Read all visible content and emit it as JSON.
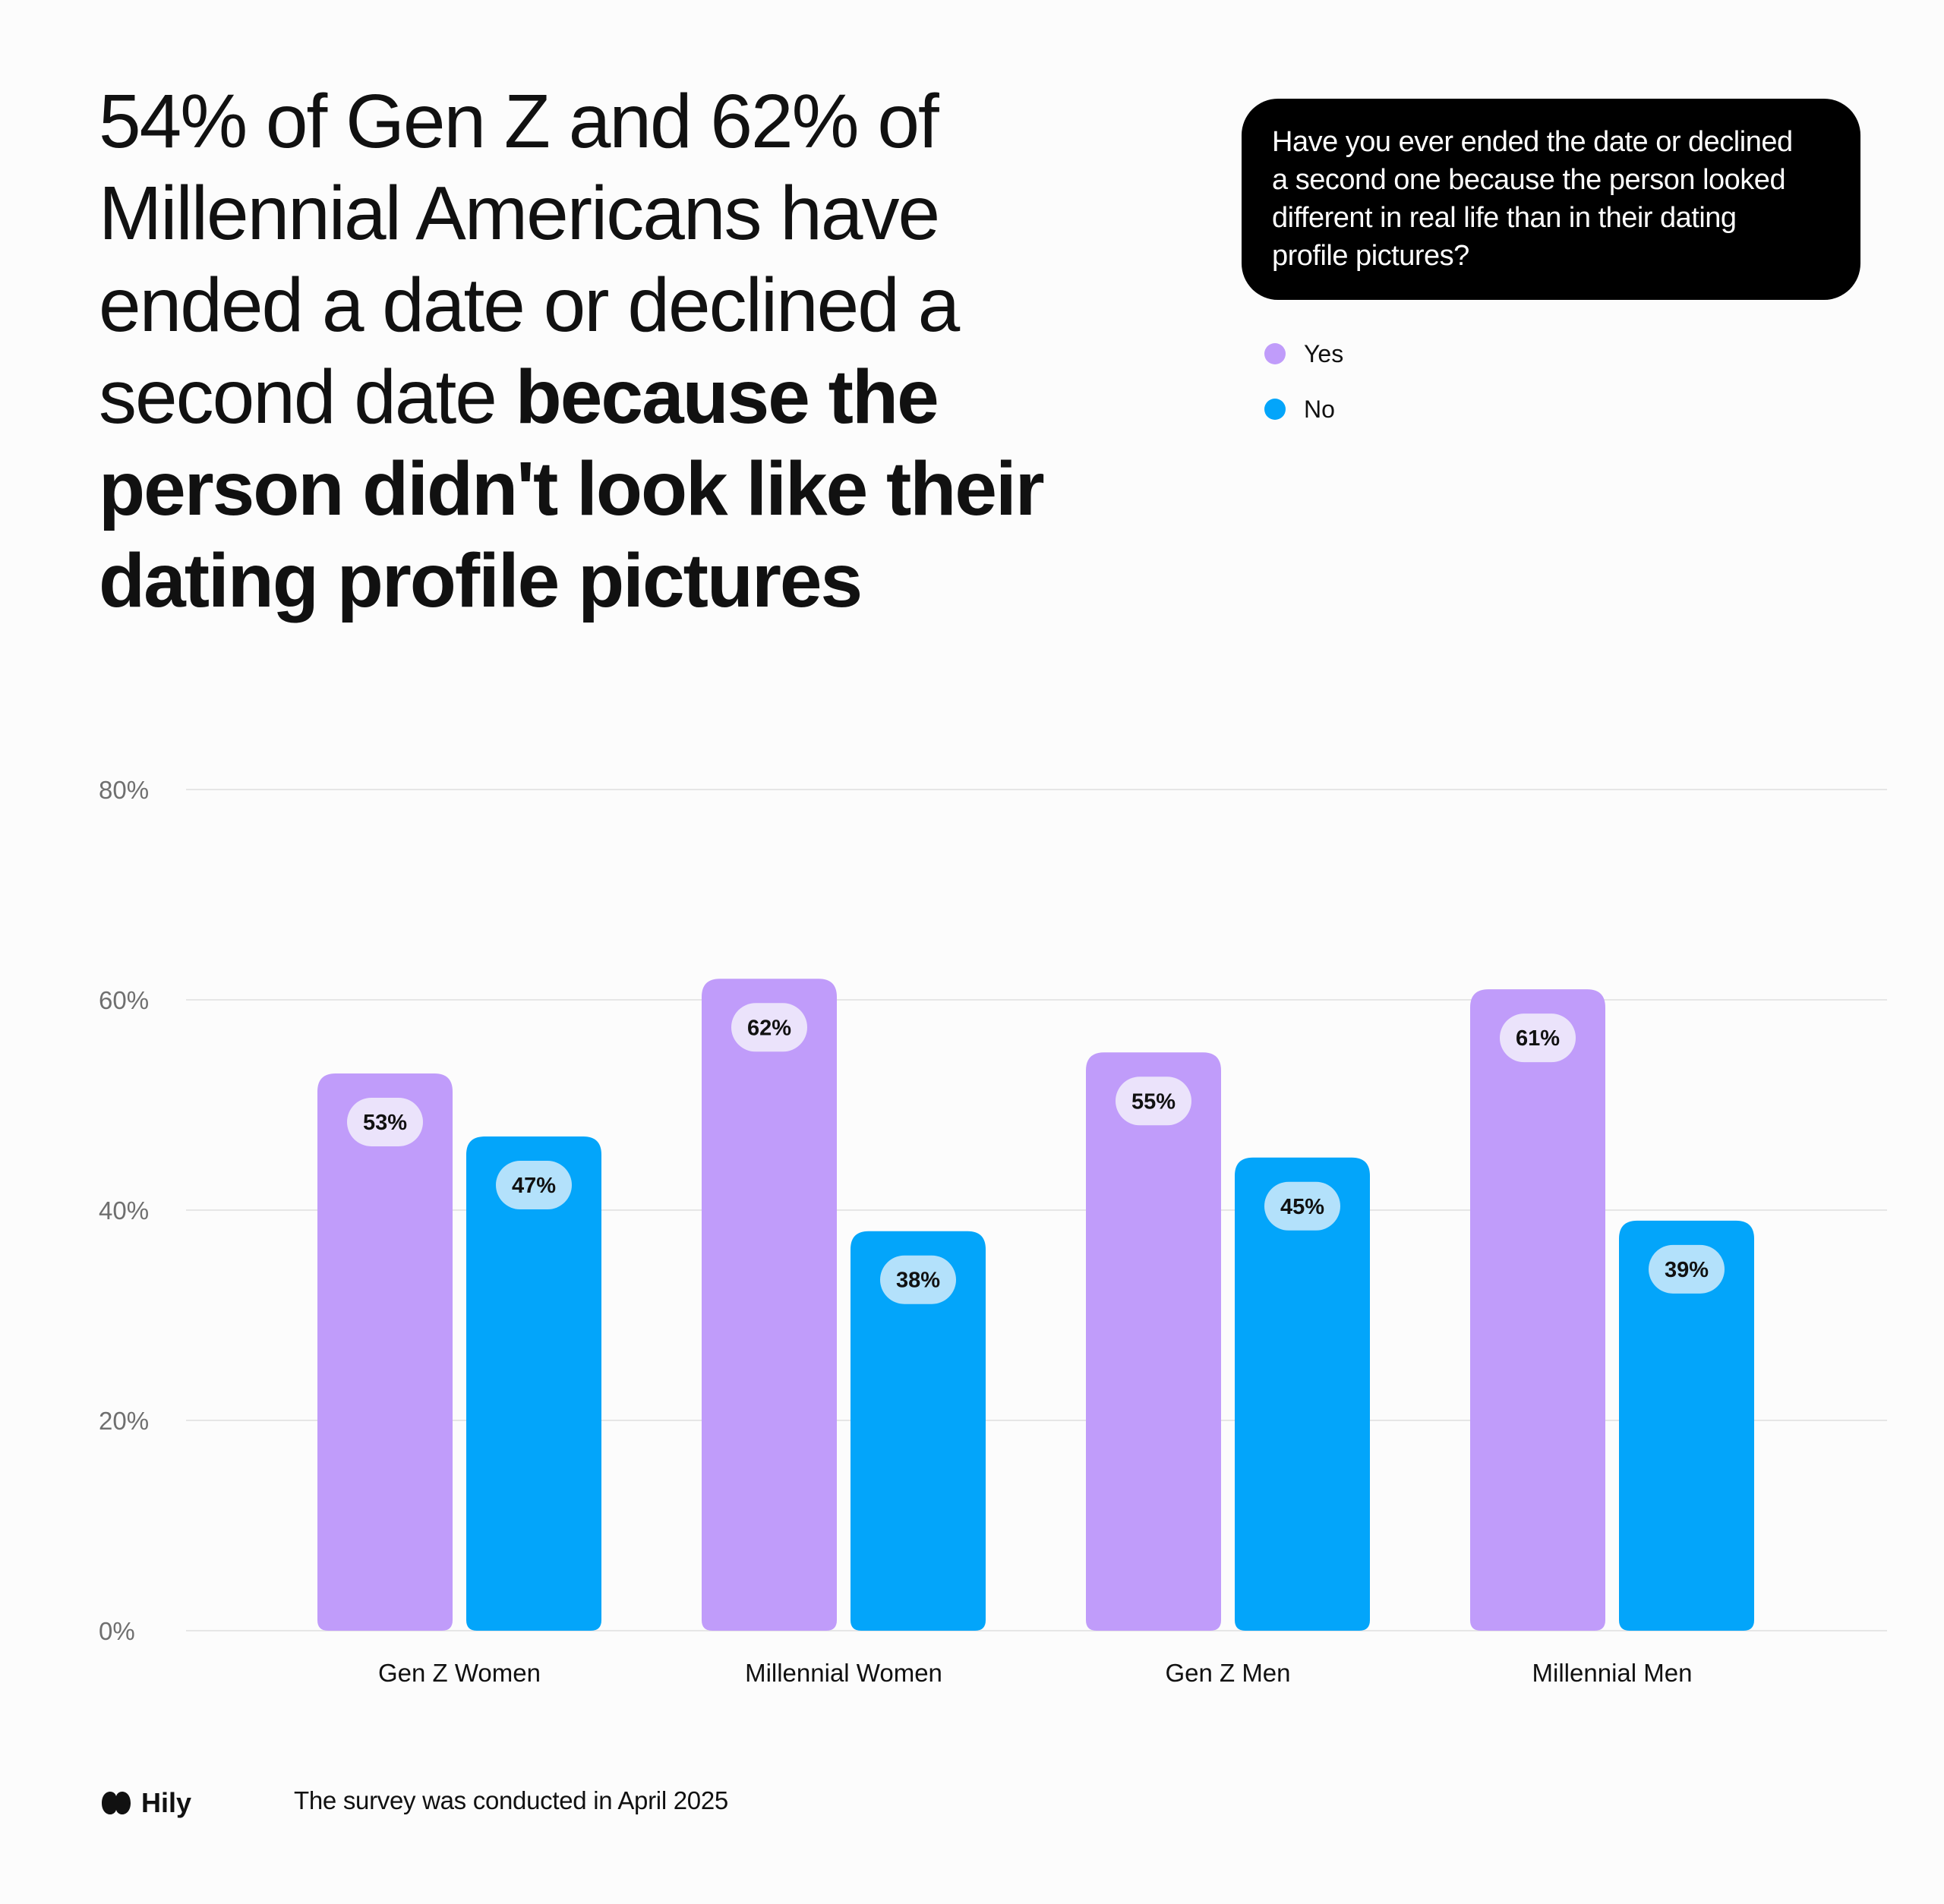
{
  "headline": {
    "regular": "54% of Gen Z and 62% of Millennial Americans have ended a date or declined a second date ",
    "bold": "because the person didn't look like their dating profile pictures"
  },
  "question": "Have you ever ended the date or declined a second one because the person looked different in real life than in their dating profile pictures?",
  "legend": [
    {
      "label": "Yes",
      "color": "#c09cfa"
    },
    {
      "label": "No",
      "color": "#03a5fa"
    }
  ],
  "footer": {
    "brand": "Hily",
    "note": "The survey was conducted in April 2025"
  },
  "chart_data": {
    "type": "bar",
    "title": "",
    "xlabel": "",
    "ylabel": "",
    "categories": [
      "Gen Z Women",
      "Millennial Women",
      "Gen Z Men",
      "Millennial Men"
    ],
    "series": [
      {
        "name": "Yes",
        "color": "#c09cfa",
        "label_bg": "#ebe3fb",
        "values": [
          53,
          62,
          55,
          61
        ]
      },
      {
        "name": "No",
        "color": "#03a5fa",
        "label_bg": "#b3e1fb",
        "values": [
          47,
          38,
          45,
          39
        ]
      }
    ],
    "ylim": [
      0,
      80
    ],
    "yticks": [
      0,
      20,
      40,
      60,
      80
    ],
    "ytick_labels": [
      "0%",
      "20%",
      "40%",
      "60%",
      "80%"
    ],
    "value_suffix": "%",
    "grid": true,
    "legend_position": "top-right"
  }
}
